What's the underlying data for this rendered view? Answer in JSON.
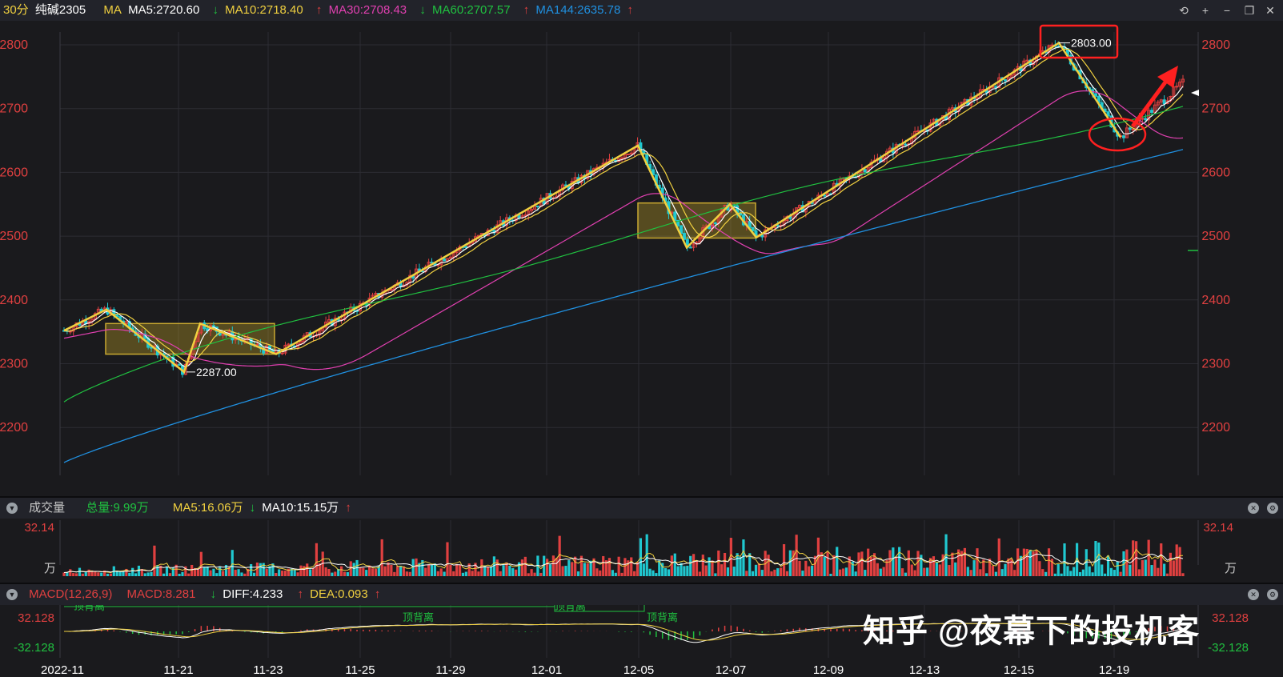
{
  "header": {
    "period": "30分",
    "symbol": "纯碱2305",
    "ma_label": "MA",
    "ma5": "MA5:2720.60",
    "ma10": "MA10:2718.40",
    "ma30": "MA30:2708.43",
    "ma60": "MA60:2707.57",
    "ma144": "MA144:2635.78",
    "ma10_arrow": "↓",
    "ma30_arrow": "↑",
    "ma60_arrow": "↓",
    "ma144_arrow": "↑"
  },
  "toolbar": {
    "undo": "⟲",
    "zoom_in": "+",
    "zoom_out": "−",
    "window": "❐",
    "close": "✕"
  },
  "price_axis": {
    "ticks": [
      "2800",
      "2700",
      "2600",
      "2500",
      "2400",
      "2300",
      "2200"
    ]
  },
  "annotations": {
    "high_label": "2803.00",
    "low_label": "2287.00"
  },
  "volume_panel": {
    "title": "成交量",
    "total": "总量:9.99万",
    "ma5": "MA5:16.06万",
    "ma5_arrow": "↓",
    "ma10": "MA10:15.15万",
    "ma10_arrow": "↑",
    "top_value": "32.14",
    "unit": "万"
  },
  "macd_panel": {
    "title": "MACD(12,26,9)",
    "macd": "MACD:8.281",
    "diff": "DIFF:4.233",
    "diff_arrow": "↓",
    "dea": "DEA:0.093",
    "dea_arrow": "↑",
    "top_value": "32.128",
    "bottom_value": "-32.128",
    "divergence_label": "顶背离"
  },
  "time_axis": {
    "labels": [
      "2022-11",
      "11-21",
      "11-23",
      "11-25",
      "11-29",
      "12-01",
      "12-05",
      "12-07",
      "12-09",
      "12-13",
      "12-15",
      "12-19"
    ]
  },
  "watermark": "知乎 @夜幕下的投机客",
  "colors": {
    "up": "#e04040",
    "down": "#20c8d0",
    "ma5": "#ffffff",
    "ma10": "#f0d040",
    "ma30": "#e040b0",
    "ma60": "#20c040",
    "ma144": "#2090e0",
    "annotation": "#f0d040",
    "highlight": "#ff2020"
  },
  "chart_data": {
    "type": "candlestick",
    "y_range": [
      2140,
      2840
    ],
    "annotated_high": 2803,
    "annotated_low": 2287,
    "ma_values": {
      "MA5": 2720.6,
      "MA10": 2718.4,
      "MA30": 2708.43,
      "MA60": 2707.57,
      "MA144": 2635.78
    },
    "zigzag": [
      {
        "date": "2022-11",
        "price": 2352
      },
      {
        "date": "11-18",
        "price": 2385
      },
      {
        "date": "11-21",
        "price": 2287
      },
      {
        "date": "11-22",
        "price": 2363
      },
      {
        "date": "11-23",
        "price": 2315
      },
      {
        "date": "12-05",
        "price": 2642
      },
      {
        "date": "12-06",
        "price": 2482
      },
      {
        "date": "12-07",
        "price": 2550
      },
      {
        "date": "12-07",
        "price": 2498
      },
      {
        "date": "12-16",
        "price": 2803
      },
      {
        "date": "12-19",
        "price": 2655
      }
    ]
  }
}
